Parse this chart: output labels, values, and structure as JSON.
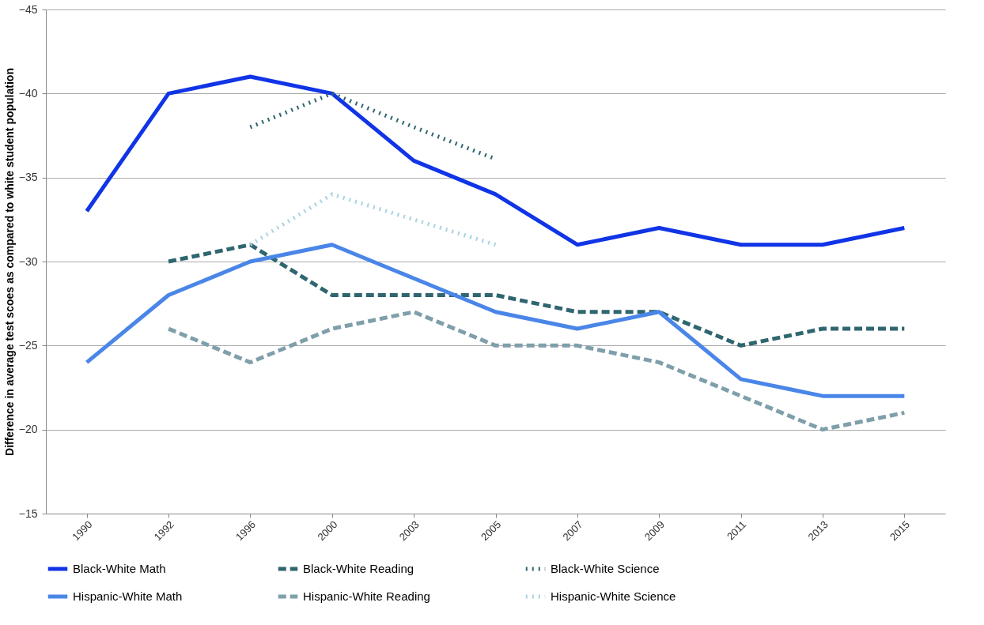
{
  "chart_data": {
    "type": "line",
    "ylabel": "Difference in average test scoes as compared to white student population",
    "categories": [
      "1990",
      "1992",
      "1996",
      "2000",
      "2003",
      "2005",
      "2007",
      "2009",
      "2011",
      "2013",
      "2015"
    ],
    "ylim": [
      -15,
      -45
    ],
    "yticks": [
      -15,
      -20,
      -25,
      -30,
      -35,
      -40,
      -45
    ],
    "grid": "y",
    "legend": "bottom",
    "marker": "none",
    "series": [
      {
        "name": "Black-White Math",
        "color": "#1034e6",
        "line_style": "solid",
        "values": [
          -33,
          -40,
          -41,
          -40,
          -36,
          -34,
          -31,
          -32,
          -31,
          -31,
          -32
        ]
      },
      {
        "name": "Black-White Reading",
        "color": "#2f6670",
        "line_style": "dashed",
        "values": [
          null,
          -30,
          -31,
          -28,
          -28,
          -28,
          -27,
          -27,
          -25,
          -26,
          -26
        ]
      },
      {
        "name": "Black-White Science",
        "color": "#2f6670",
        "line_style": "dotted",
        "values": [
          null,
          null,
          -38,
          -40,
          -38,
          -36.1,
          null,
          null,
          null,
          null,
          null
        ]
      },
      {
        "name": "Hispanic-White Math",
        "color": "#4a86e8",
        "line_style": "solid",
        "values": [
          -24,
          -28,
          -30,
          -31,
          -29,
          -27,
          -26,
          -27,
          -23,
          -22,
          -22
        ]
      },
      {
        "name": "Hispanic-White Reading",
        "color": "#7f9faa",
        "line_style": "dashed",
        "values": [
          null,
          -26,
          -24,
          -26,
          -27,
          -25,
          -25,
          -24,
          -22,
          -20,
          -21
        ]
      },
      {
        "name": "Hispanic-White Science",
        "color": "#a7d3e0",
        "line_style": "dotted",
        "values": [
          null,
          null,
          -31,
          -34,
          -32.5,
          -31,
          null,
          null,
          null,
          null,
          null
        ]
      }
    ]
  }
}
